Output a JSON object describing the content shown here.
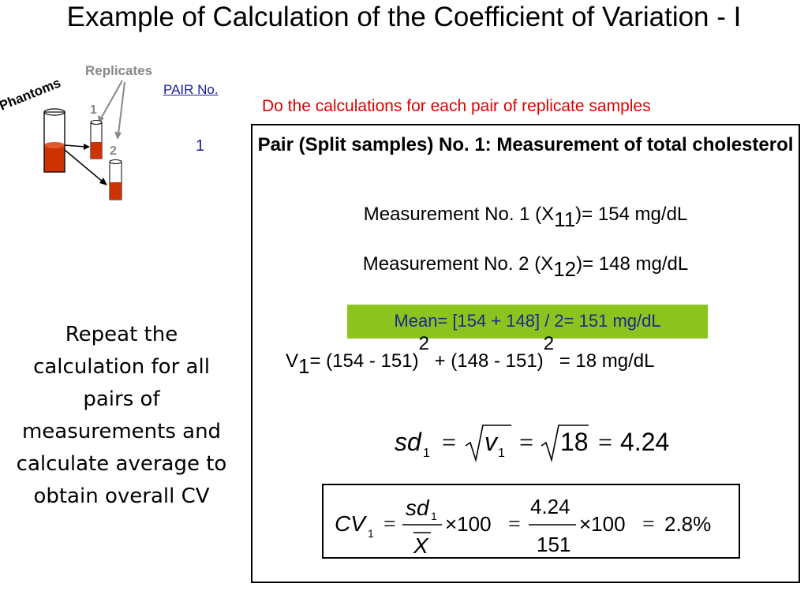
{
  "title": "Example of Calculation of the Coefficient of Variation - I",
  "diagram": {
    "phantoms_label": "Phantoms",
    "replicates_label": "Replicates",
    "replicate_1": "1",
    "replicate_2": "2"
  },
  "pair_header": "PAIR No.",
  "pair_number": "1",
  "instruction": "Do the calculations for each pair of replicate samples",
  "side_note": "Repeat the calculation for all pairs of measurements and calculate average to obtain overall CV",
  "box": {
    "heading": "Pair (Split samples) No. 1: Measurement of total cholesterol",
    "meas1_prefix": "Measurement No. 1 (X",
    "meas1_sub": "11",
    "meas1_suffix": ")= 154 mg/dL",
    "meas2_prefix": "Measurement No. 2 (X",
    "meas2_sub": "12",
    "meas2_suffix": ")= 148 mg/dL",
    "mean": "Mean= [154 + 148] / 2= 151 mg/dL",
    "variance": {
      "v": "V",
      "v_sub": "1",
      "term1": "= (154 - 151)",
      "sup1": "2",
      "term2": " + (148 - 151)",
      "sup2": "2",
      "term3": " = 18 mg/dL"
    },
    "sd": {
      "sd": "sd",
      "sd_sub": "1",
      "eq": "=",
      "v": "v",
      "v_sub": "1",
      "value": "18",
      "result": "4.24"
    },
    "cv": {
      "cv": "CV",
      "cv_sub": "1",
      "num": "sd",
      "num_sub": "1",
      "den": "X",
      "times": "×100",
      "num2": "4.24",
      "den2": "151",
      "result": "2.8%"
    }
  },
  "colors": {
    "title": "#000000",
    "pair": "#1a1aa0",
    "instruction": "#e00000",
    "mean_band": "#8cc31e",
    "mean_text": "#1a2a8a",
    "liquid": "#cc3300"
  }
}
